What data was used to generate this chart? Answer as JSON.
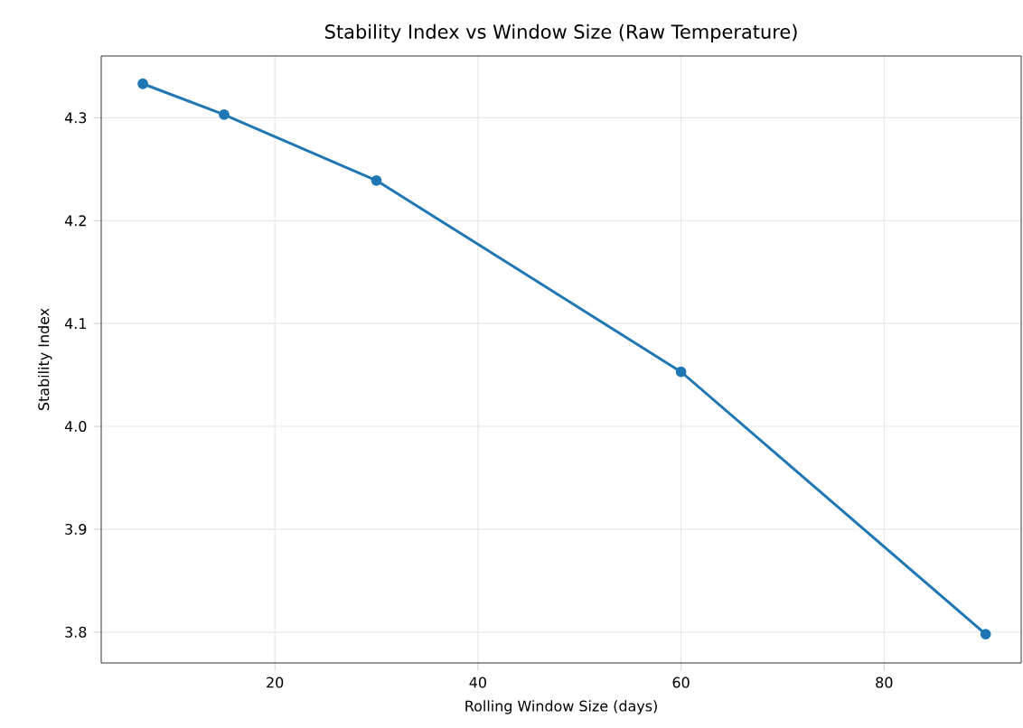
{
  "chart_data": {
    "type": "line",
    "title": "Stability Index vs Window Size (Raw Temperature)",
    "xlabel": "Rolling Window Size (days)",
    "ylabel": "Stability Index",
    "x": [
      7,
      15,
      30,
      60,
      90
    ],
    "series": [
      {
        "color": "#1f77b4",
        "values": [
          4.333,
          4.303,
          4.239,
          4.053,
          3.798
        ]
      }
    ],
    "xlim": [
      2.9,
      93.5
    ],
    "ylim": [
      3.77,
      4.36
    ],
    "xticks": [
      20,
      40,
      60,
      80
    ],
    "yticks": [
      3.8,
      3.9,
      {
        "value": 4,
        "label": "4.0"
      },
      4.1,
      4.2,
      4.3
    ],
    "grid": true,
    "marker": "circle",
    "line_style": "solid"
  }
}
